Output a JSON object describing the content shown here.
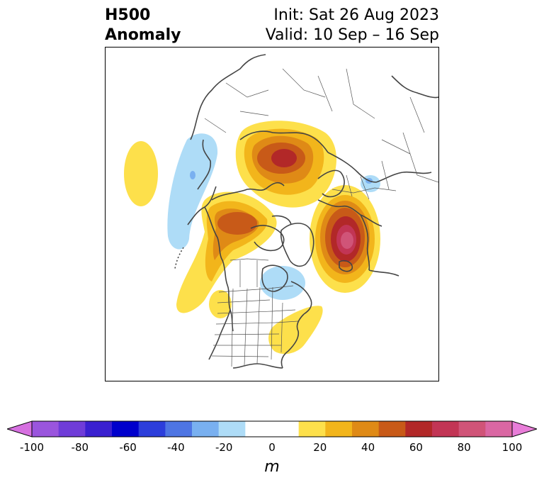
{
  "title": {
    "variable": "H500",
    "field": "Anomaly",
    "init": "Init: Sat 26 Aug 2023",
    "valid": "Valid: 10 Sep – 16 Sep"
  },
  "colorbar": {
    "unit": "m",
    "ticks": [
      "-100",
      "-80",
      "-60",
      "-40",
      "-20",
      "0",
      "20",
      "40",
      "60",
      "80",
      "100"
    ],
    "range": [
      -100,
      100
    ],
    "step": 10,
    "extend": "both",
    "colors": [
      "#d670e0",
      "#9a55dd",
      "#6f3cd8",
      "#3a20d0",
      "#0000cc",
      "#2c3edb",
      "#4e75e3",
      "#79b0f0",
      "#aedcf7",
      "#ffffff",
      "#ffffff",
      "#fde04b",
      "#f2b51b",
      "#df8a16",
      "#c85a18",
      "#b22828",
      "#c23555",
      "#d05478",
      "#da67a3",
      "#e87dd8"
    ]
  },
  "map": {
    "projection": "polar stereographic, North America / Arctic",
    "anomalies": [
      {
        "region": "Greenland / Arctic Ocean",
        "value": 60,
        "sign": "positive"
      },
      {
        "region": "Northern Europe / Scandinavia",
        "value": 70,
        "sign": "positive"
      },
      {
        "region": "Alaska / Yukon",
        "value": 50,
        "sign": "positive"
      },
      {
        "region": "Bering Sea / North Pacific",
        "value": 20,
        "sign": "positive"
      },
      {
        "region": "Eastern United States",
        "value": 20,
        "sign": "positive"
      },
      {
        "region": "Hudson Bay / Eastern Canada",
        "value": -20,
        "sign": "negative"
      },
      {
        "region": "Eastern Siberia / Kamchatka",
        "value": -20,
        "sign": "negative"
      },
      {
        "region": "Western Russia",
        "value": -20,
        "sign": "negative"
      }
    ]
  }
}
